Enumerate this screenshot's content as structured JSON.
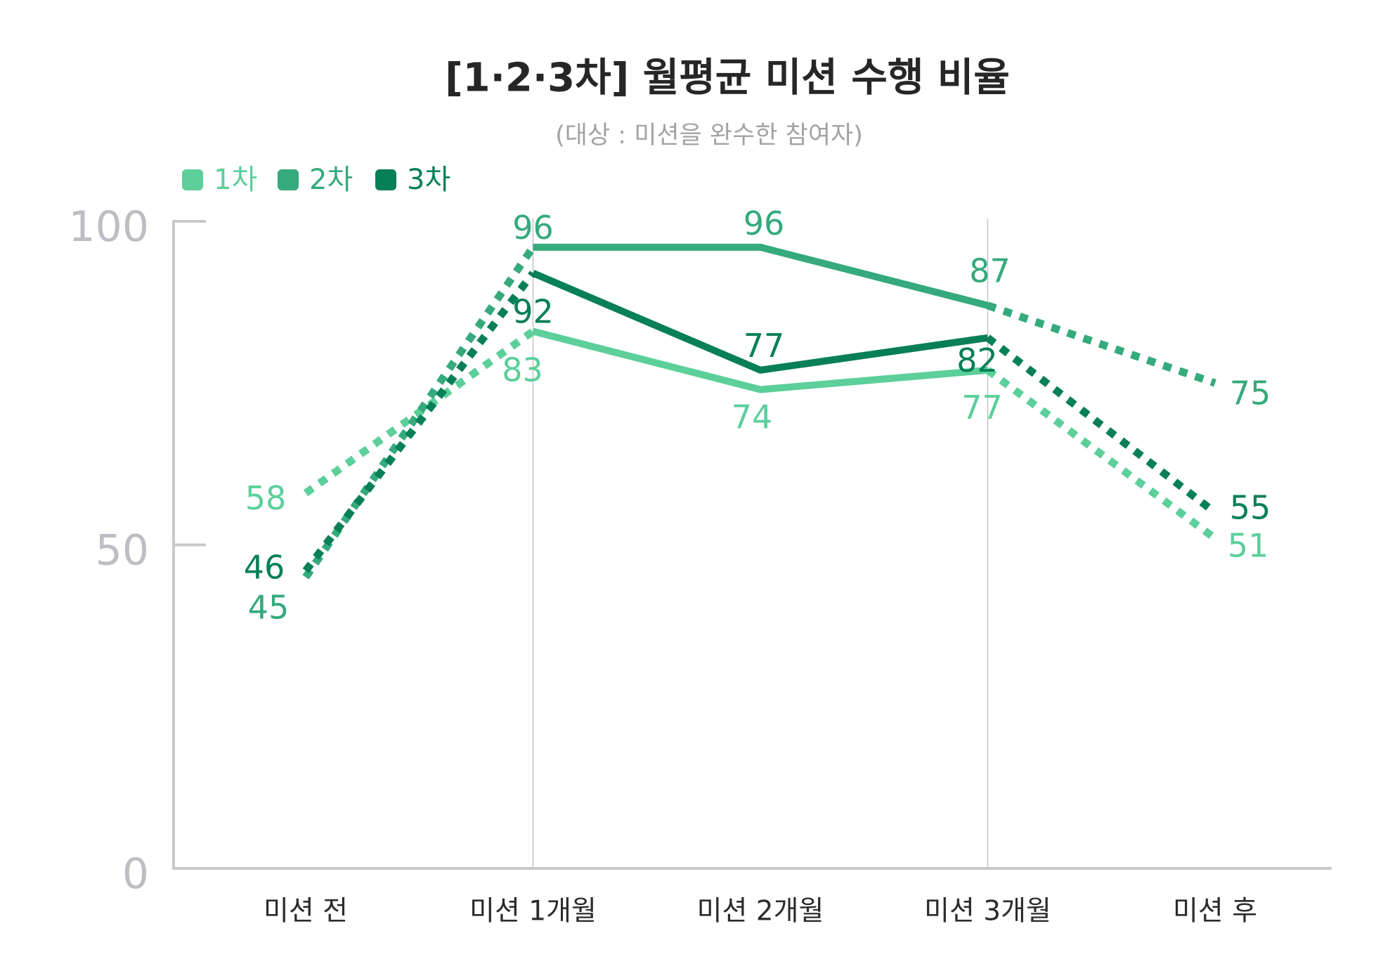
{
  "chart_data": {
    "type": "line",
    "title": "[1·2·3차] 월평균 미션 수행 비율",
    "subtitle": "(대상 : 미션을 완수한 참여자)",
    "categories": [
      "미션 전",
      "미션 1개월",
      "미션 2개월",
      "미션 3개월",
      "미션 후"
    ],
    "series": [
      {
        "name": "1차",
        "values": [
          58,
          83,
          74,
          77,
          51
        ],
        "color": "#5ccf9a"
      },
      {
        "name": "2차",
        "values": [
          45,
          96,
          96,
          87,
          75
        ],
        "color": "#35aa7c"
      },
      {
        "name": "3차",
        "values": [
          46,
          92,
          77,
          82,
          55
        ],
        "color": "#077f57"
      }
    ],
    "ylim": [
      0,
      100
    ],
    "yticks": [
      0,
      50,
      100
    ],
    "segment_styles": [
      "dotted",
      "solid",
      "solid",
      "dotted"
    ],
    "vertical_lines_at": [
      "미션 1개월",
      "미션 3개월"
    ],
    "data_labels": true,
    "grid": false,
    "legend_position": "top-left",
    "axis_color": "#c8c8cd",
    "tick_label_color": "#bdbdc4"
  }
}
